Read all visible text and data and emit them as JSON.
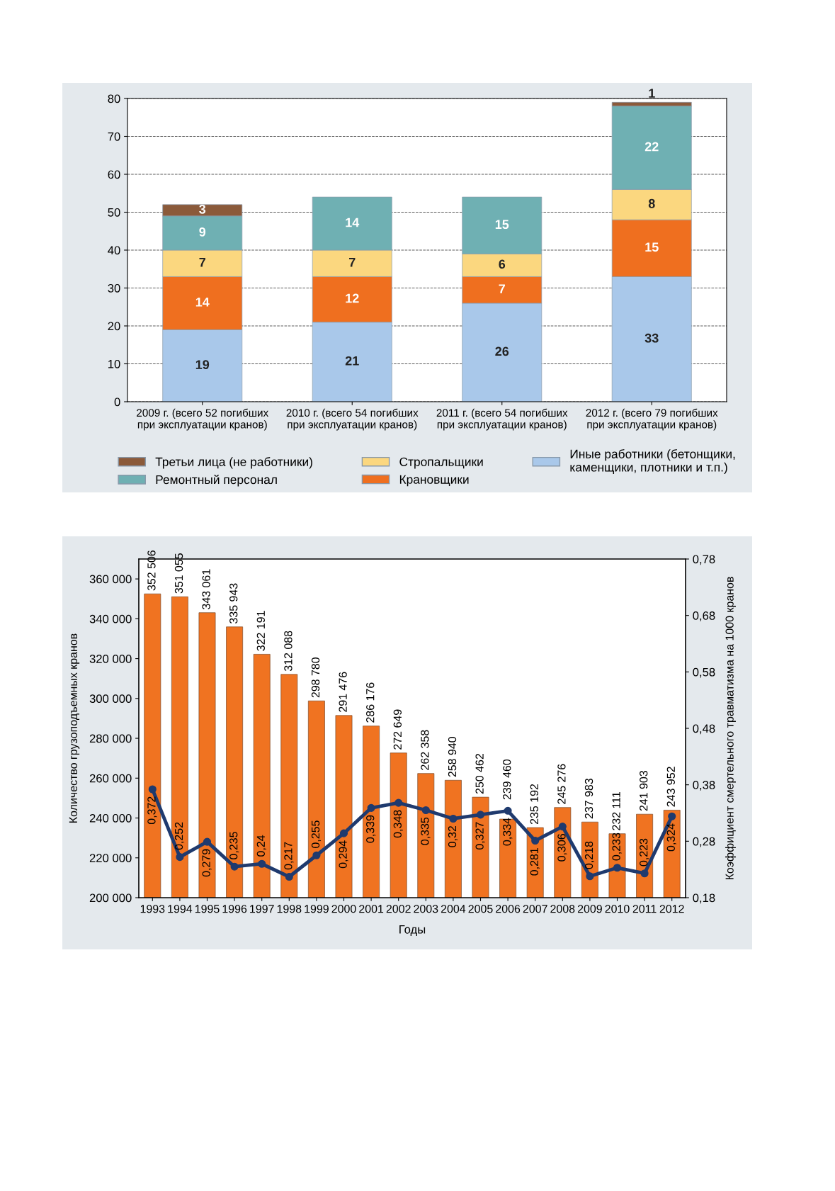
{
  "chart_data": [
    {
      "type": "bar",
      "stacked": true,
      "data_labels": true,
      "grid": "y",
      "legend": "bottom",
      "categories": [
        "2009 г. (всего 52 погибших\nпри эксплуатации кранов)",
        "2010 г. (всего 54 погибших\nпри эксплуатации кранов)",
        "2011 г. (всего 54 погибших\nпри эксплуатации кранов)",
        "2012 г. (всего 79 погибших\nпри эксплуатации кранов)"
      ],
      "ylim": [
        0,
        80
      ],
      "yticks": [
        0,
        10,
        20,
        30,
        40,
        50,
        60,
        70,
        80
      ],
      "series": [
        {
          "name": "Иные работники (бетонщики,\nкаменщики, плотники и т.п.)",
          "color": "#a9c8ea",
          "values": [
            19,
            21,
            26,
            33
          ]
        },
        {
          "name": "Крановщики",
          "color": "#ef6f1f",
          "values": [
            14,
            12,
            7,
            15
          ]
        },
        {
          "name": "Стропальщики",
          "color": "#fbd77f",
          "values": [
            7,
            7,
            6,
            8
          ]
        },
        {
          "name": "Ремонтный персонал",
          "color": "#6fb0b3",
          "values": [
            9,
            14,
            15,
            22
          ]
        },
        {
          "name": "Третьи лица (не работники)",
          "color": "#8b5a3a",
          "values": [
            3,
            null,
            null,
            1
          ]
        }
      ]
    },
    {
      "type": "bar",
      "xlabel": "Годы",
      "ylabel": "Количество грузоподъемных кранов",
      "y2label": "Коэффициент смертельного травматизма на 1000 кранов",
      "categories": [
        "1993",
        "1994",
        "1995",
        "1996",
        "1997",
        "1998",
        "1999",
        "2000",
        "2001",
        "2002",
        "2003",
        "2004",
        "2005",
        "2006",
        "2007",
        "2008",
        "2009",
        "2010",
        "2011",
        "2012"
      ],
      "ylim": [
        200000,
        370000
      ],
      "yticks": [
        {
          "value": 200000,
          "label": "200 000"
        },
        {
          "value": 220000,
          "label": "220 000"
        },
        {
          "value": 240000,
          "label": "240 000"
        },
        {
          "value": 260000,
          "label": "260 000"
        },
        {
          "value": 280000,
          "label": "280 000"
        },
        {
          "value": 300000,
          "label": "300 000"
        },
        {
          "value": 320000,
          "label": "320 000"
        },
        {
          "value": 340000,
          "label": "340 000"
        },
        {
          "value": 360000,
          "label": "360 000"
        }
      ],
      "y2lim": [
        0.18,
        0.78
      ],
      "y2ticks": [
        {
          "value": 0.18,
          "label": "0,18"
        },
        {
          "value": 0.28,
          "label": "0,28"
        },
        {
          "value": 0.38,
          "label": "0,38"
        },
        {
          "value": 0.48,
          "label": "0,48"
        },
        {
          "value": 0.58,
          "label": "0,58"
        },
        {
          "value": 0.68,
          "label": "0,68"
        },
        {
          "value": 0.78,
          "label": "0,78"
        }
      ],
      "series": [
        {
          "type": "bar",
          "color": "#f07321",
          "values": [
            352506,
            351055,
            343061,
            335943,
            322191,
            312088,
            298780,
            291476,
            286176,
            272649,
            262358,
            258940,
            250462,
            239460,
            235192,
            245276,
            237983,
            232111,
            241903,
            243952
          ],
          "value_labels": [
            "352 506",
            "351 055",
            "343 061",
            "335 943",
            "322 191",
            "312 088",
            "298 780",
            "291 476",
            "286 176",
            "272 649",
            "262 358",
            "258 940",
            "250 462",
            "239 460",
            "235 192",
            "245 276",
            "237 983",
            "232 111",
            "241 903",
            "243 952"
          ]
        },
        {
          "type": "line",
          "axis": "y2",
          "color": "#1f3a6e",
          "marker": "circle",
          "line_style": "solid",
          "values": [
            0.372,
            0.252,
            0.279,
            0.235,
            0.24,
            0.217,
            0.255,
            0.294,
            0.339,
            0.348,
            0.335,
            0.32,
            0.327,
            0.334,
            0.281,
            0.306,
            0.218,
            0.233,
            0.223,
            0.324
          ],
          "value_labels": [
            "0,372",
            "0,252",
            "0,279",
            "0,235",
            "0,24",
            "0,217",
            "0,255",
            "0,294",
            "0,339",
            "0,348",
            "0,335",
            "0,32",
            "0,327",
            "0,334",
            "0,281",
            "0,306",
            "0,218",
            "0,233",
            "0,223",
            "0,324"
          ]
        }
      ]
    }
  ]
}
